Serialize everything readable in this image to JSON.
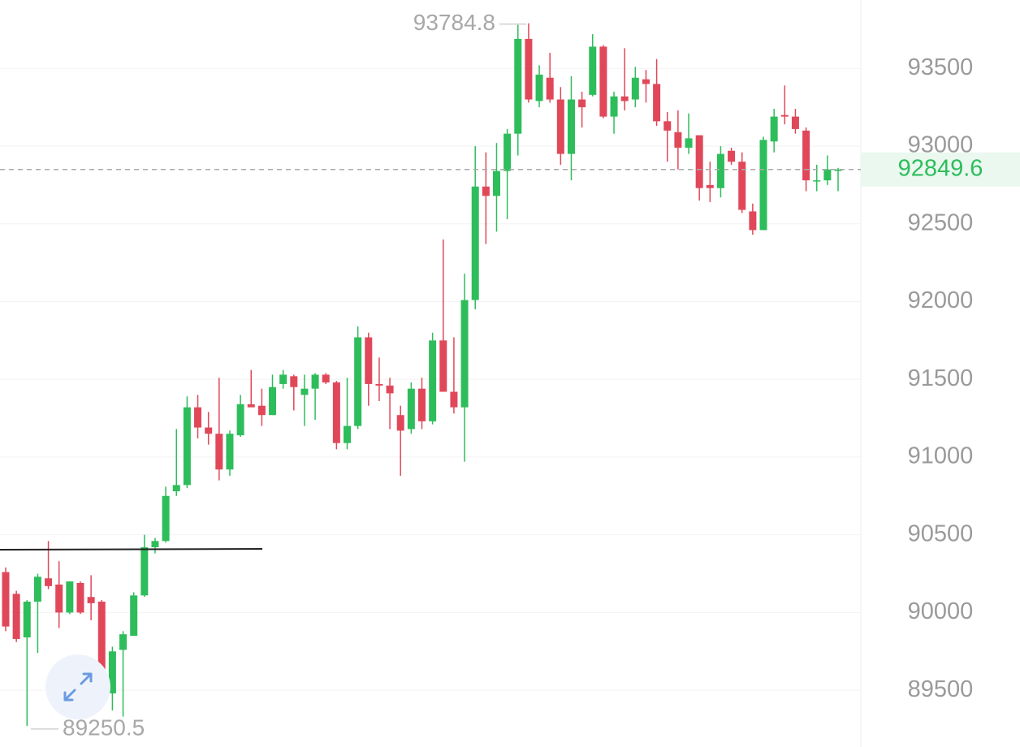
{
  "chart_data": {
    "type": "candlestick",
    "up_color": "#2ebd5b",
    "down_color": "#e0485a",
    "open": [
      90260,
      90120,
      89840,
      90070,
      90220,
      90180,
      90000,
      90190,
      90100,
      90070,
      89480,
      89760,
      89850,
      90110,
      90420,
      90460,
      90780,
      90820,
      91320,
      91190,
      91150,
      90920,
      91140,
      91340,
      91330,
      91270,
      91470,
      91520,
      91400,
      91440,
      91530,
      91480,
      91090,
      91200,
      91770,
      91470,
      91460,
      91270,
      91180,
      91440,
      91230,
      91750,
      91420,
      91320,
      92010,
      92740,
      92680,
      92840,
      93080,
      93690,
      93290,
      93440,
      93300,
      92950,
      93300,
      93330,
      93640,
      93190,
      93320,
      93300,
      93430,
      93400,
      93160,
      93090,
      92990,
      93070,
      92750,
      92730,
      92970,
      92900,
      92580,
      92460,
      93030,
      93200,
      93190,
      93100,
      92780,
      92780,
      92840
    ],
    "high": [
      90290,
      90140,
      90080,
      90250,
      90460,
      90330,
      90200,
      90200,
      90240,
      90080,
      89780,
      89880,
      90130,
      90500,
      90480,
      90810,
      91180,
      91390,
      91400,
      91290,
      91510,
      91170,
      91400,
      91560,
      91440,
      91530,
      91560,
      91530,
      91530,
      91540,
      91540,
      91490,
      91510,
      91840,
      91800,
      91640,
      91510,
      91330,
      91480,
      91510,
      91800,
      92400,
      91770,
      92180,
      93000,
      92960,
      93020,
      93110,
      93780,
      93790,
      93520,
      93600,
      93380,
      93450,
      93350,
      93720,
      93650,
      93350,
      93630,
      93510,
      93490,
      93560,
      93220,
      93230,
      93210,
      93070,
      92900,
      93000,
      92990,
      92960,
      92630,
      93060,
      93240,
      93390,
      93240,
      93120,
      92880,
      92940,
      92860
    ],
    "low": [
      89880,
      89810,
      89270,
      89740,
      90150,
      89900,
      89990,
      89990,
      89950,
      89450,
      89370,
      89330,
      89850,
      90100,
      90380,
      90450,
      90750,
      90800,
      91120,
      91080,
      90850,
      90880,
      91130,
      91330,
      91200,
      91270,
      91440,
      91300,
      91200,
      91240,
      91470,
      91050,
      91050,
      91180,
      91330,
      91360,
      91180,
      90880,
      91150,
      91180,
      91210,
      91450,
      91280,
      90970,
      91950,
      92370,
      92450,
      92530,
      92940,
      93280,
      93250,
      93280,
      92880,
      92780,
      93120,
      93320,
      93180,
      93080,
      93230,
      93250,
      93280,
      93130,
      92900,
      92850,
      92950,
      92650,
      92640,
      92670,
      92880,
      92570,
      92430,
      92460,
      92960,
      93140,
      93080,
      92710,
      92710,
      92750,
      92710
    ],
    "close": [
      89910,
      89830,
      90070,
      90230,
      90170,
      90000,
      90200,
      90000,
      90060,
      89480,
      89750,
      89860,
      90110,
      90420,
      90460,
      90750,
      90820,
      91320,
      91190,
      91150,
      90920,
      91150,
      91340,
      91320,
      91270,
      91450,
      91530,
      91450,
      91440,
      91530,
      91480,
      91090,
      91200,
      91770,
      91470,
      91460,
      91410,
      91170,
      91440,
      91230,
      91750,
      91420,
      91320,
      92010,
      92740,
      92680,
      92840,
      93080,
      93690,
      93300,
      93460,
      93300,
      92950,
      93300,
      93250,
      93640,
      93190,
      93320,
      93290,
      93440,
      93400,
      93160,
      93100,
      92990,
      93050,
      92730,
      92730,
      92950,
      92900,
      92590,
      92460,
      93040,
      93190,
      93190,
      93110,
      92780,
      92780,
      92850,
      92850
    ],
    "ylim": [
      89135,
      93940
    ],
    "yticks": [
      89500,
      90000,
      90500,
      91000,
      91500,
      92000,
      92500,
      93000,
      93500
    ],
    "grid": true,
    "annotations": {
      "high": 93784.8,
      "low": 89250.5,
      "last": 92849.6
    }
  }
}
